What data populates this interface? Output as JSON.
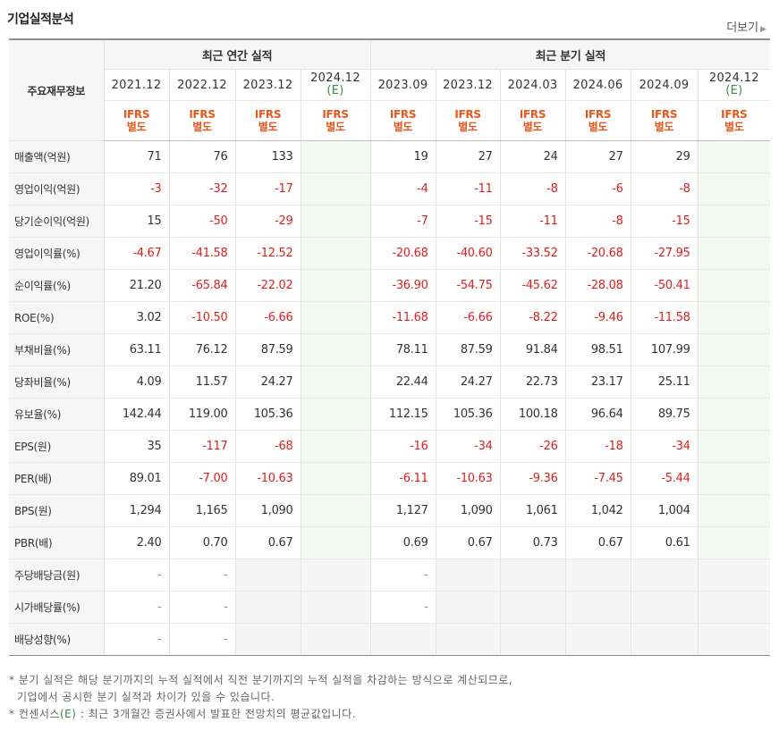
{
  "title": "기업실적분석",
  "more_label": "더보기",
  "header": {
    "row_label": "주요재무정보",
    "annual_label": "최근 연간 실적",
    "quarter_label": "최근 분기 실적",
    "annual_periods": [
      "2021.12",
      "2022.12",
      "2023.12",
      "2024.12"
    ],
    "quarter_periods": [
      "2023.09",
      "2023.12",
      "2024.03",
      "2024.06",
      "2024.09",
      "2024.12"
    ],
    "estimate_mark": "(E)",
    "ifrs_line1": "IFRS",
    "ifrs_line2": "별도"
  },
  "rows": [
    {
      "label": "매출액(억원)",
      "values": [
        "71",
        "76",
        "133",
        "",
        "19",
        "27",
        "24",
        "27",
        "29",
        ""
      ]
    },
    {
      "label": "영업이익(억원)",
      "values": [
        "-3",
        "-32",
        "-17",
        "",
        "-4",
        "-11",
        "-8",
        "-6",
        "-8",
        ""
      ]
    },
    {
      "label": "당기순이익(억원)",
      "values": [
        "15",
        "-50",
        "-29",
        "",
        "-7",
        "-15",
        "-11",
        "-8",
        "-15",
        ""
      ]
    },
    {
      "label": "영업이익률(%)",
      "values": [
        "-4.67",
        "-41.58",
        "-12.52",
        "",
        "-20.68",
        "-40.60",
        "-33.52",
        "-20.68",
        "-27.95",
        ""
      ]
    },
    {
      "label": "순이익률(%)",
      "values": [
        "21.20",
        "-65.84",
        "-22.02",
        "",
        "-36.90",
        "-54.75",
        "-45.62",
        "-28.08",
        "-50.41",
        ""
      ]
    },
    {
      "label": "ROE(%)",
      "values": [
        "3.02",
        "-10.50",
        "-6.66",
        "",
        "-11.68",
        "-6.66",
        "-8.22",
        "-9.46",
        "-11.58",
        ""
      ]
    },
    {
      "label": "부채비율(%)",
      "values": [
        "63.11",
        "76.12",
        "87.59",
        "",
        "78.11",
        "87.59",
        "91.84",
        "98.51",
        "107.99",
        ""
      ]
    },
    {
      "label": "당좌비율(%)",
      "values": [
        "4.09",
        "11.57",
        "24.27",
        "",
        "22.44",
        "24.27",
        "22.73",
        "23.17",
        "25.11",
        ""
      ]
    },
    {
      "label": "유보율(%)",
      "values": [
        "142.44",
        "119.00",
        "105.36",
        "",
        "112.15",
        "105.36",
        "100.18",
        "96.64",
        "89.75",
        ""
      ]
    },
    {
      "label": "EPS(원)",
      "values": [
        "35",
        "-117",
        "-68",
        "",
        "-16",
        "-34",
        "-26",
        "-18",
        "-34",
        ""
      ]
    },
    {
      "label": "PER(배)",
      "values": [
        "89.01",
        "-7.00",
        "-10.63",
        "",
        "-6.11",
        "-10.63",
        "-9.36",
        "-7.45",
        "-5.44",
        ""
      ]
    },
    {
      "label": "BPS(원)",
      "values": [
        "1,294",
        "1,165",
        "1,090",
        "",
        "1,127",
        "1,090",
        "1,061",
        "1,042",
        "1,004",
        ""
      ]
    },
    {
      "label": "PBR(배)",
      "values": [
        "2.40",
        "0.70",
        "0.67",
        "",
        "0.69",
        "0.67",
        "0.73",
        "0.67",
        "0.61",
        ""
      ]
    },
    {
      "label": "주당배당금(원)",
      "values": [
        "-",
        "-",
        "",
        "",
        "-",
        "",
        "",
        "",
        "",
        ""
      ]
    },
    {
      "label": "시가배당률(%)",
      "values": [
        "-",
        "-",
        "",
        "",
        "-",
        "",
        "",
        "",
        "",
        ""
      ]
    },
    {
      "label": "배당성향(%)",
      "values": [
        "-",
        "-",
        "",
        "",
        "",
        "",
        "",
        "",
        "",
        ""
      ]
    }
  ],
  "notes": {
    "line1": "분기 실적은 해당 분기까지의 누적 실적에서 직전 분기까지의 누적 실적을 차감하는 방식으로 계산되므로,",
    "line2": "기업에서 공시한 분기 실적과 차이가 있을 수 있습니다.",
    "line3_prefix": "컨센서스",
    "line3_mark": "(E)",
    "line3_suffix": " : 최근 3개월간 증권사에서 발표한 전망치의 평균값입니다."
  }
}
